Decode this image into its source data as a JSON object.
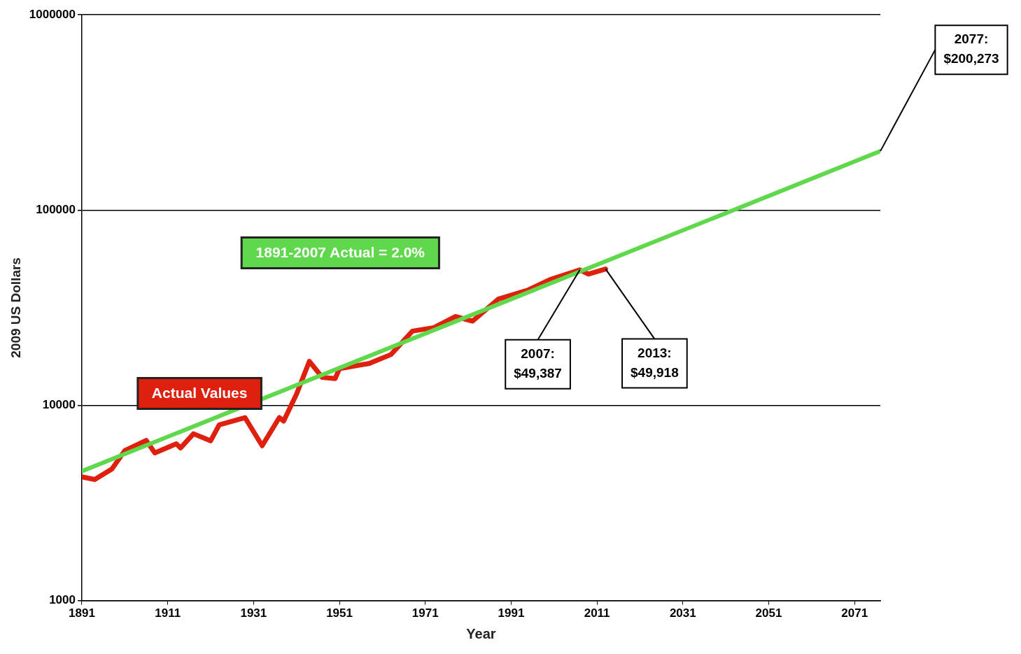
{
  "chart_data": {
    "type": "line",
    "xlabel": "Year",
    "ylabel": "2009 US Dollars",
    "log": "y",
    "grid": "y",
    "legend": false,
    "marker": "none",
    "xlim": [
      1891,
      2077
    ],
    "xticks": [
      1891,
      1911,
      1931,
      1951,
      1971,
      1991,
      2011,
      2031,
      2051,
      2071
    ],
    "ylim": [
      1000,
      1000000
    ],
    "yticks": [
      1000,
      10000,
      100000,
      1000000
    ],
    "series": [
      {
        "name": "Actual Values",
        "color": "#e0200f",
        "x": [
          1891,
          1894,
          1898,
          1901,
          1906,
          1908,
          1913,
          1914,
          1917,
          1921,
          1923,
          1929,
          1933,
          1937,
          1938,
          1941,
          1944,
          1947,
          1950,
          1951,
          1958,
          1963,
          1968,
          1973,
          1978,
          1982,
          1988,
          1995,
          2000,
          2007,
          2009,
          2013
        ],
        "values": [
          4300,
          4170,
          4720,
          5860,
          6610,
          5710,
          6350,
          6050,
          7150,
          6580,
          7950,
          8650,
          6210,
          8650,
          8300,
          11400,
          16800,
          13900,
          13700,
          15400,
          16400,
          18200,
          24000,
          25000,
          28500,
          27000,
          35000,
          39000,
          44000,
          49387,
          47000,
          49918
        ]
      },
      {
        "name": "1891-2007 Actual = 2.0%",
        "color": "#5fd84c",
        "x": [
          1891,
          2077
        ],
        "values": [
          4600,
          200273
        ]
      }
    ],
    "annotations": [
      {
        "text": "2007: $49,387",
        "x": 2007,
        "y": 49387
      },
      {
        "text": "2013: $49,918",
        "x": 2013,
        "y": 49918
      },
      {
        "text": "2077: $200,273",
        "x": 2077,
        "y": 200273
      }
    ]
  }
}
